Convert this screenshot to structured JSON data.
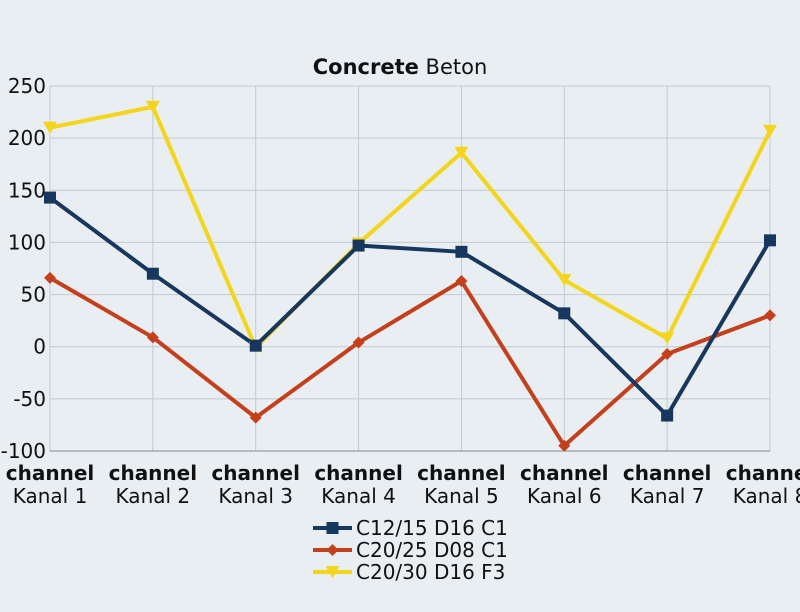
{
  "chart_data": {
    "type": "line",
    "title": {
      "bold": "Concrete",
      "regular": "Beton"
    },
    "categories": [
      {
        "line1": "channel",
        "line2": "Kanal 1"
      },
      {
        "line1": "channel",
        "line2": "Kanal 2"
      },
      {
        "line1": "channel",
        "line2": "Kanal 3"
      },
      {
        "line1": "channel",
        "line2": "Kanal 4"
      },
      {
        "line1": "channel",
        "line2": "Kanal 5"
      },
      {
        "line1": "channel",
        "line2": "Kanal 6"
      },
      {
        "line1": "channel",
        "line2": "Kanal 7"
      },
      {
        "line1": "channel",
        "line2": "Kanal 8"
      }
    ],
    "ylim": [
      -100,
      250
    ],
    "yticks": [
      -100,
      -50,
      0,
      50,
      100,
      150,
      200,
      250
    ],
    "grid": true,
    "legend_position": "bottom",
    "series": [
      {
        "name": "C12/15 D16 C1",
        "color": "#17375e",
        "marker": "square",
        "values": [
          143,
          70,
          1,
          97,
          91,
          32,
          -66,
          102
        ]
      },
      {
        "name": "C20/25 D08 C1",
        "color": "#c4401d",
        "marker": "diamond",
        "values": [
          66,
          9,
          -68,
          4,
          63,
          -95,
          -7,
          30
        ]
      },
      {
        "name": "C20/30 D16 F3",
        "color": "#f3d51b",
        "marker": "triangle",
        "values": [
          210,
          230,
          -1,
          99,
          186,
          64,
          8,
          207
        ]
      }
    ]
  }
}
